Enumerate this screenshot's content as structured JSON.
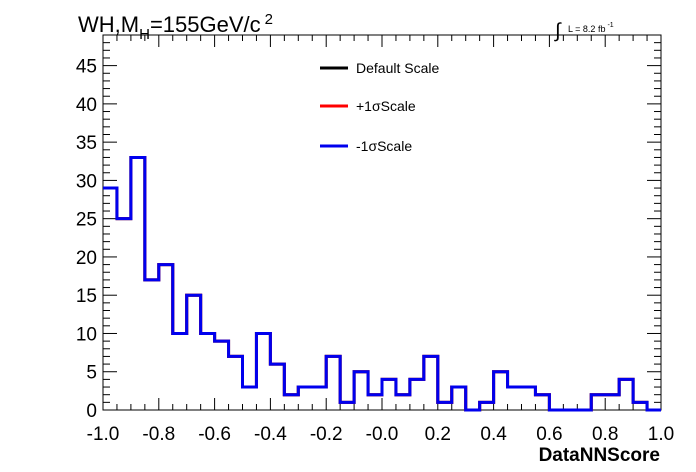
{
  "chart_data": {
    "type": "histogram",
    "title": {
      "main": "WH,M",
      "sub": "H",
      "rest": "=155GeV/c",
      "sup": "2"
    },
    "lumi": {
      "integral": "∫",
      "text": "L = 8.2 fb",
      "sup": "-1"
    },
    "xlabel": "DataNNScore",
    "ylabel": "",
    "xlim": [
      -1.0,
      1.0
    ],
    "ylim": [
      0,
      49
    ],
    "x_ticks": [
      "-1.0",
      "-0.8",
      "-0.6",
      "-0.4",
      "-0.2",
      "-0.0",
      "0.2",
      "0.4",
      "0.6",
      "0.8",
      "1.0"
    ],
    "y_ticks": [
      "0",
      "5",
      "10",
      "15",
      "20",
      "25",
      "30",
      "35",
      "40",
      "45"
    ],
    "bin_edges_start": -1.0,
    "bin_width": 0.05,
    "legend_placement": "top-center",
    "series": [
      {
        "name": "Default Scale",
        "color": "#000000",
        "values": [
          29,
          25,
          33,
          17,
          19,
          10,
          15,
          10,
          9,
          7,
          3,
          10,
          6,
          2,
          3,
          3,
          7,
          1,
          5,
          2,
          4,
          2,
          4,
          7,
          1,
          3,
          0,
          1,
          5,
          3,
          3,
          2,
          0,
          0,
          0,
          2,
          2,
          4,
          1,
          0
        ]
      },
      {
        "name": "+1σScale",
        "color": "#ff0000",
        "values": [
          29,
          25,
          33,
          17,
          19,
          10,
          15,
          10,
          9,
          7,
          3,
          10,
          6,
          2,
          3,
          3,
          7,
          1,
          5,
          2,
          4,
          2,
          4,
          7,
          1,
          3,
          0,
          1,
          5,
          3,
          3,
          2,
          0,
          0,
          0,
          2,
          2,
          4,
          1,
          0
        ]
      },
      {
        "name": "-1σScale",
        "color": "#0000ee",
        "values": [
          29,
          25,
          33,
          17,
          19,
          10,
          15,
          10,
          9,
          7,
          3,
          10,
          6,
          2,
          3,
          3,
          7,
          1,
          5,
          2,
          4,
          2,
          4,
          7,
          1,
          3,
          0,
          1,
          5,
          3,
          3,
          2,
          0,
          0,
          0,
          2,
          2,
          4,
          1,
          0
        ]
      }
    ]
  }
}
